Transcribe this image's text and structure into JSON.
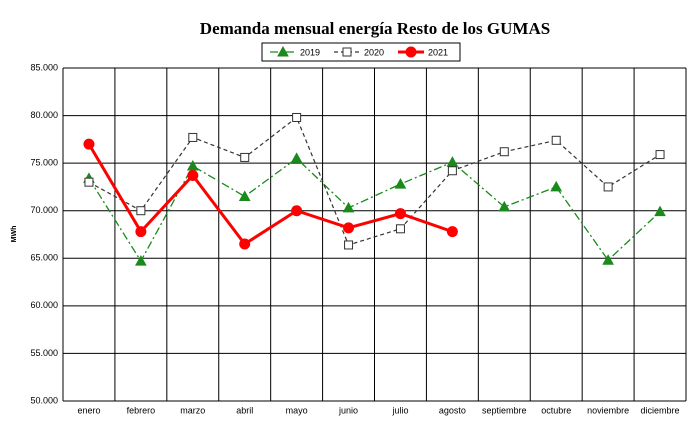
{
  "chart_data": {
    "type": "line",
    "title": "Demanda mensual energía Resto de los GUMAS",
    "y_label": "MWh",
    "categories": [
      "enero",
      "febrero",
      "marzo",
      "abril",
      "mayo",
      "junio",
      "julio",
      "agosto",
      "septiembre",
      "octubre",
      "noviembre",
      "diciembre"
    ],
    "series": [
      {
        "name": "2019",
        "color": "#1a8a1a",
        "marker": "triangle",
        "dash": "8 3 2 3",
        "width": 1.3,
        "values": [
          73400,
          64700,
          74700,
          71500,
          75500,
          70300,
          72800,
          75100,
          70400,
          72500,
          64800,
          69900
        ]
      },
      {
        "name": "2020",
        "color": "#333333",
        "marker": "square",
        "dash": "4 3",
        "width": 1.2,
        "values": [
          73000,
          70000,
          77700,
          75600,
          79800,
          66400,
          68100,
          74200,
          76200,
          77400,
          72500,
          75900
        ]
      },
      {
        "name": "2021",
        "color": "#ff0000",
        "marker": "circle",
        "dash": "",
        "width": 3,
        "values": [
          77000,
          67800,
          73700,
          66500,
          70000,
          68200,
          69700,
          67800,
          null,
          null,
          null,
          null
        ]
      }
    ],
    "ylim": [
      50000,
      85000
    ],
    "yticks": [
      {
        "value": 50000,
        "label": "50.000"
      },
      {
        "value": 55000,
        "label": "55.000"
      },
      {
        "value": 60000,
        "label": "60.000"
      },
      {
        "value": 65000,
        "label": "65.000"
      },
      {
        "value": 70000,
        "label": "70.000"
      },
      {
        "value": 75000,
        "label": "75.000"
      },
      {
        "value": 80000,
        "label": "80.000"
      },
      {
        "value": 85000,
        "label": "85.000"
      }
    ],
    "grid": true,
    "legend": "top"
  }
}
